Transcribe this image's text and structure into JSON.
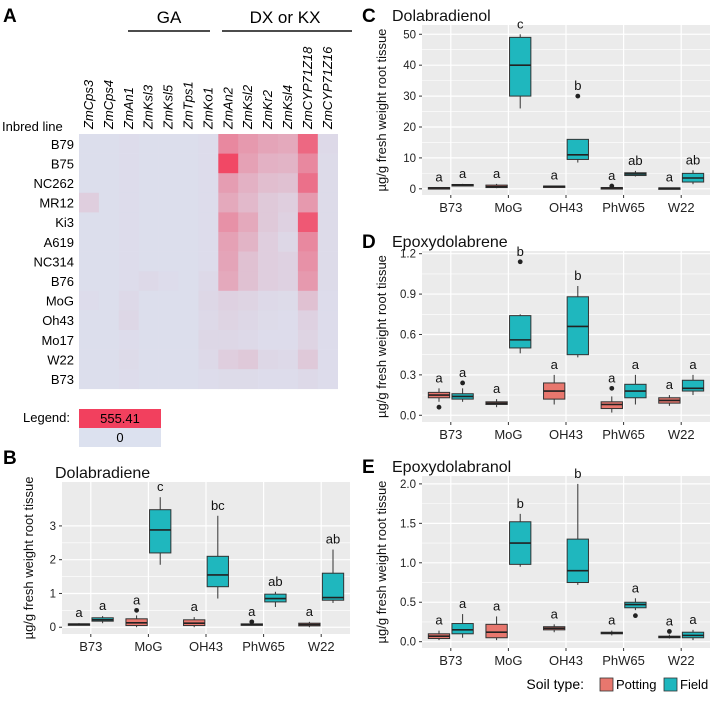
{
  "colors": {
    "potting": "#E8776E",
    "field": "#1FB7BE",
    "panel_bg": "#EBEBEB",
    "grid": "#FFFFFF",
    "heat_low": "#DCE1EF",
    "heat_high": "#F2405E"
  },
  "panel_letters": [
    "A",
    "B",
    "C",
    "D",
    "E"
  ],
  "heatmap": {
    "group_labels": [
      "GA",
      "DX or KX"
    ],
    "row_header": "Inbred line",
    "genes": [
      "ZmCps3",
      "ZmCps4",
      "ZmAn1",
      "ZmKsl3",
      "ZmKsl5",
      "ZmTps1",
      "ZmKo1",
      "ZmAn2",
      "ZmKsl2",
      "ZmKr2",
      "ZmKsl4",
      "ZmCYP71Z18",
      "ZmCYP71Z16"
    ],
    "lines": [
      "B79",
      "B75",
      "NC262",
      "MR12",
      "Ki3",
      "A619",
      "NC314",
      "B76",
      "MoG",
      "Oh43",
      "Mo17",
      "W22",
      "B73"
    ],
    "legend_label": "Legend:",
    "legend_max": "555.41",
    "legend_min": "0",
    "values": [
      [
        0.02,
        0.02,
        0.03,
        0.02,
        0.02,
        0.02,
        0.03,
        0.55,
        0.45,
        0.38,
        0.35,
        0.75,
        0.05
      ],
      [
        0.02,
        0.02,
        0.03,
        0.02,
        0.02,
        0.02,
        0.03,
        0.95,
        0.4,
        0.3,
        0.28,
        0.55,
        0.04
      ],
      [
        0.02,
        0.02,
        0.03,
        0.02,
        0.02,
        0.02,
        0.03,
        0.42,
        0.3,
        0.22,
        0.2,
        0.7,
        0.04
      ],
      [
        0.12,
        0.02,
        0.03,
        0.02,
        0.02,
        0.02,
        0.03,
        0.35,
        0.25,
        0.15,
        0.12,
        0.45,
        0.04
      ],
      [
        0.02,
        0.02,
        0.03,
        0.02,
        0.02,
        0.02,
        0.03,
        0.5,
        0.35,
        0.15,
        0.1,
        0.85,
        0.04
      ],
      [
        0.02,
        0.02,
        0.03,
        0.02,
        0.02,
        0.02,
        0.03,
        0.4,
        0.28,
        0.12,
        0.06,
        0.55,
        0.04
      ],
      [
        0.02,
        0.02,
        0.03,
        0.02,
        0.02,
        0.02,
        0.03,
        0.38,
        0.2,
        0.12,
        0.1,
        0.5,
        0.04
      ],
      [
        0.02,
        0.02,
        0.03,
        0.05,
        0.03,
        0.02,
        0.05,
        0.35,
        0.2,
        0.12,
        0.1,
        0.45,
        0.04
      ],
      [
        0.03,
        0.02,
        0.05,
        0.02,
        0.02,
        0.02,
        0.06,
        0.1,
        0.08,
        0.05,
        0.04,
        0.2,
        0.03
      ],
      [
        0.02,
        0.02,
        0.06,
        0.02,
        0.02,
        0.02,
        0.05,
        0.08,
        0.06,
        0.04,
        0.03,
        0.1,
        0.03
      ],
      [
        0.02,
        0.02,
        0.03,
        0.02,
        0.02,
        0.02,
        0.06,
        0.06,
        0.05,
        0.03,
        0.03,
        0.08,
        0.03
      ],
      [
        0.02,
        0.02,
        0.04,
        0.02,
        0.02,
        0.02,
        0.05,
        0.12,
        0.15,
        0.06,
        0.05,
        0.15,
        0.03
      ],
      [
        0.02,
        0.02,
        0.03,
        0.02,
        0.02,
        0.02,
        0.03,
        0.04,
        0.04,
        0.03,
        0.03,
        0.05,
        0.03
      ]
    ]
  },
  "legend": {
    "title": "Soil type:",
    "items": [
      "Potting",
      "Field"
    ]
  },
  "chart_data": [
    {
      "id": "B",
      "type": "box",
      "title": "Dolabradiene",
      "ylabel": "µg/g fresh weight root tissue",
      "categories": [
        "B73",
        "MoG",
        "OH43",
        "PhW65",
        "W22"
      ],
      "ylim": [
        -0.2,
        4.3
      ],
      "yticks": [
        0,
        1,
        2,
        3
      ],
      "boxes": [
        {
          "cat": "B73",
          "soil": "Potting",
          "stats": [
            0.05,
            0.08,
            0.09,
            0.1,
            0.12
          ],
          "outliers": [],
          "letter": "a"
        },
        {
          "cat": "B73",
          "soil": "Field",
          "stats": [
            0.12,
            0.18,
            0.22,
            0.28,
            0.33
          ],
          "outliers": [],
          "letter": "a"
        },
        {
          "cat": "MoG",
          "soil": "Potting",
          "stats": [
            0.0,
            0.05,
            0.13,
            0.25,
            0.35
          ],
          "outliers": [
            0.5
          ],
          "letter": "a"
        },
        {
          "cat": "MoG",
          "soil": "Field",
          "stats": [
            1.85,
            2.2,
            2.88,
            3.48,
            3.85
          ],
          "outliers": [],
          "letter": "c"
        },
        {
          "cat": "OH43",
          "soil": "Potting",
          "stats": [
            0.0,
            0.05,
            0.12,
            0.22,
            0.3
          ],
          "outliers": [],
          "letter": "a"
        },
        {
          "cat": "OH43",
          "soil": "Field",
          "stats": [
            0.85,
            1.2,
            1.55,
            2.1,
            3.3
          ],
          "outliers": [],
          "letter": "bc"
        },
        {
          "cat": "PhW65",
          "soil": "Potting",
          "stats": [
            0.05,
            0.07,
            0.08,
            0.1,
            0.12
          ],
          "outliers": [
            0.16
          ],
          "letter": "a"
        },
        {
          "cat": "PhW65",
          "soil": "Field",
          "stats": [
            0.6,
            0.75,
            0.85,
            0.98,
            1.05
          ],
          "outliers": [],
          "letter": "ab"
        },
        {
          "cat": "W22",
          "soil": "Potting",
          "stats": [
            0.0,
            0.04,
            0.08,
            0.12,
            0.16
          ],
          "outliers": [],
          "letter": "a"
        },
        {
          "cat": "W22",
          "soil": "Field",
          "stats": [
            0.72,
            0.8,
            0.88,
            1.6,
            2.3
          ],
          "outliers": [],
          "letter": "ab"
        }
      ]
    },
    {
      "id": "C",
      "type": "box",
      "title": "Dolabradienol",
      "ylabel": "µg/g fresh weight root tissue",
      "categories": [
        "B73",
        "MoG",
        "OH43",
        "PhW65",
        "W22"
      ],
      "ylim": [
        -2,
        53
      ],
      "yticks": [
        0,
        10,
        20,
        30,
        40,
        50
      ],
      "boxes": [
        {
          "cat": "B73",
          "soil": "Potting",
          "stats": [
            0.1,
            0.2,
            0.3,
            0.4,
            0.5
          ],
          "outliers": [],
          "letter": "a"
        },
        {
          "cat": "B73",
          "soil": "Field",
          "stats": [
            1.0,
            1.2,
            1.3,
            1.4,
            1.6
          ],
          "outliers": [],
          "letter": "a"
        },
        {
          "cat": "MoG",
          "soil": "Potting",
          "stats": [
            0.2,
            0.4,
            0.7,
            1.2,
            1.6
          ],
          "outliers": [],
          "letter": "a"
        },
        {
          "cat": "MoG",
          "soil": "Field",
          "stats": [
            26,
            30,
            40,
            49,
            50
          ],
          "outliers": [],
          "letter": "c"
        },
        {
          "cat": "OH43",
          "soil": "Potting",
          "stats": [
            0.4,
            0.6,
            0.8,
            0.9,
            1.0
          ],
          "outliers": [],
          "letter": "a"
        },
        {
          "cat": "OH43",
          "soil": "Field",
          "stats": [
            8.5,
            9.5,
            11,
            16,
            16
          ],
          "outliers": [
            30
          ],
          "letter": "b"
        },
        {
          "cat": "PhW65",
          "soil": "Potting",
          "stats": [
            0.1,
            0.2,
            0.3,
            0.4,
            0.5
          ],
          "outliers": [
            0.9
          ],
          "letter": "a"
        },
        {
          "cat": "PhW65",
          "soil": "Field",
          "stats": [
            4,
            4.3,
            4.8,
            5.2,
            5.8
          ],
          "outliers": [],
          "letter": "ab"
        },
        {
          "cat": "W22",
          "soil": "Potting",
          "stats": [
            0.0,
            0.1,
            0.2,
            0.3,
            0.4
          ],
          "outliers": [],
          "letter": "a"
        },
        {
          "cat": "W22",
          "soil": "Field",
          "stats": [
            1.5,
            2.2,
            3.5,
            5.0,
            6.0
          ],
          "outliers": [],
          "letter": "ab"
        }
      ]
    },
    {
      "id": "D",
      "type": "box",
      "title": "Epoxydolabrene",
      "ylabel": "µg/g fresh weight root tissue",
      "categories": [
        "B73",
        "MoG",
        "OH43",
        "PhW65",
        "W22"
      ],
      "ylim": [
        -0.05,
        1.22
      ],
      "yticks": [
        0.0,
        0.3,
        0.6,
        0.9,
        1.2
      ],
      "boxes": [
        {
          "cat": "B73",
          "soil": "Potting",
          "stats": [
            0.1,
            0.13,
            0.15,
            0.17,
            0.2
          ],
          "outliers": [
            0.06
          ],
          "letter": "a"
        },
        {
          "cat": "B73",
          "soil": "Field",
          "stats": [
            0.1,
            0.12,
            0.14,
            0.16,
            0.2
          ],
          "outliers": [
            0.24
          ],
          "letter": "a"
        },
        {
          "cat": "MoG",
          "soil": "Potting",
          "stats": [
            0.06,
            0.08,
            0.09,
            0.1,
            0.12
          ],
          "outliers": [],
          "letter": "a"
        },
        {
          "cat": "MoG",
          "soil": "Field",
          "stats": [
            0.46,
            0.5,
            0.56,
            0.74,
            0.75
          ],
          "outliers": [
            1.14
          ],
          "letter": "b"
        },
        {
          "cat": "OH43",
          "soil": "Potting",
          "stats": [
            0.08,
            0.12,
            0.18,
            0.24,
            0.3
          ],
          "outliers": [],
          "letter": "a"
        },
        {
          "cat": "OH43",
          "soil": "Field",
          "stats": [
            0.43,
            0.45,
            0.66,
            0.88,
            0.96
          ],
          "outliers": [],
          "letter": "b"
        },
        {
          "cat": "PhW65",
          "soil": "Potting",
          "stats": [
            0.02,
            0.05,
            0.08,
            0.1,
            0.14
          ],
          "outliers": [
            0.2
          ],
          "letter": "a"
        },
        {
          "cat": "PhW65",
          "soil": "Field",
          "stats": [
            0.08,
            0.13,
            0.18,
            0.23,
            0.3
          ],
          "outliers": [],
          "letter": "a"
        },
        {
          "cat": "W22",
          "soil": "Potting",
          "stats": [
            0.07,
            0.09,
            0.11,
            0.13,
            0.15
          ],
          "outliers": [],
          "letter": "a"
        },
        {
          "cat": "W22",
          "soil": "Field",
          "stats": [
            0.15,
            0.18,
            0.2,
            0.26,
            0.3
          ],
          "outliers": [],
          "letter": "a"
        }
      ]
    },
    {
      "id": "E",
      "type": "box",
      "title": "Epoxydolabranol",
      "ylabel": "µg/g fresh weight root tissue",
      "categories": [
        "B73",
        "MoG",
        "OH43",
        "PhW65",
        "W22"
      ],
      "ylim": [
        -0.08,
        2.1
      ],
      "yticks": [
        0.0,
        0.5,
        1.0,
        1.5,
        2.0
      ],
      "boxes": [
        {
          "cat": "B73",
          "soil": "Potting",
          "stats": [
            0.02,
            0.04,
            0.07,
            0.1,
            0.14
          ],
          "outliers": [],
          "letter": "a"
        },
        {
          "cat": "B73",
          "soil": "Field",
          "stats": [
            0.05,
            0.1,
            0.15,
            0.23,
            0.35
          ],
          "outliers": [],
          "letter": "a"
        },
        {
          "cat": "MoG",
          "soil": "Potting",
          "stats": [
            0.02,
            0.05,
            0.12,
            0.22,
            0.32
          ],
          "outliers": [],
          "letter": "a"
        },
        {
          "cat": "MoG",
          "soil": "Field",
          "stats": [
            0.95,
            0.98,
            1.25,
            1.52,
            1.62
          ],
          "outliers": [],
          "letter": "b"
        },
        {
          "cat": "OH43",
          "soil": "Potting",
          "stats": [
            0.12,
            0.15,
            0.17,
            0.19,
            0.22
          ],
          "outliers": [],
          "letter": "a"
        },
        {
          "cat": "OH43",
          "soil": "Field",
          "stats": [
            0.72,
            0.75,
            0.9,
            1.3,
            2.0
          ],
          "outliers": [],
          "letter": "b"
        },
        {
          "cat": "PhW65",
          "soil": "Potting",
          "stats": [
            0.08,
            0.1,
            0.11,
            0.12,
            0.14
          ],
          "outliers": [],
          "letter": "a"
        },
        {
          "cat": "PhW65",
          "soil": "Field",
          "stats": [
            0.4,
            0.43,
            0.47,
            0.5,
            0.55
          ],
          "outliers": [
            0.33
          ],
          "letter": "a"
        },
        {
          "cat": "W22",
          "soil": "Potting",
          "stats": [
            0.04,
            0.05,
            0.06,
            0.07,
            0.09
          ],
          "outliers": [
            0.13
          ],
          "letter": "a"
        },
        {
          "cat": "W22",
          "soil": "Field",
          "stats": [
            0.02,
            0.05,
            0.08,
            0.12,
            0.15
          ],
          "outliers": [],
          "letter": "a"
        }
      ]
    }
  ]
}
